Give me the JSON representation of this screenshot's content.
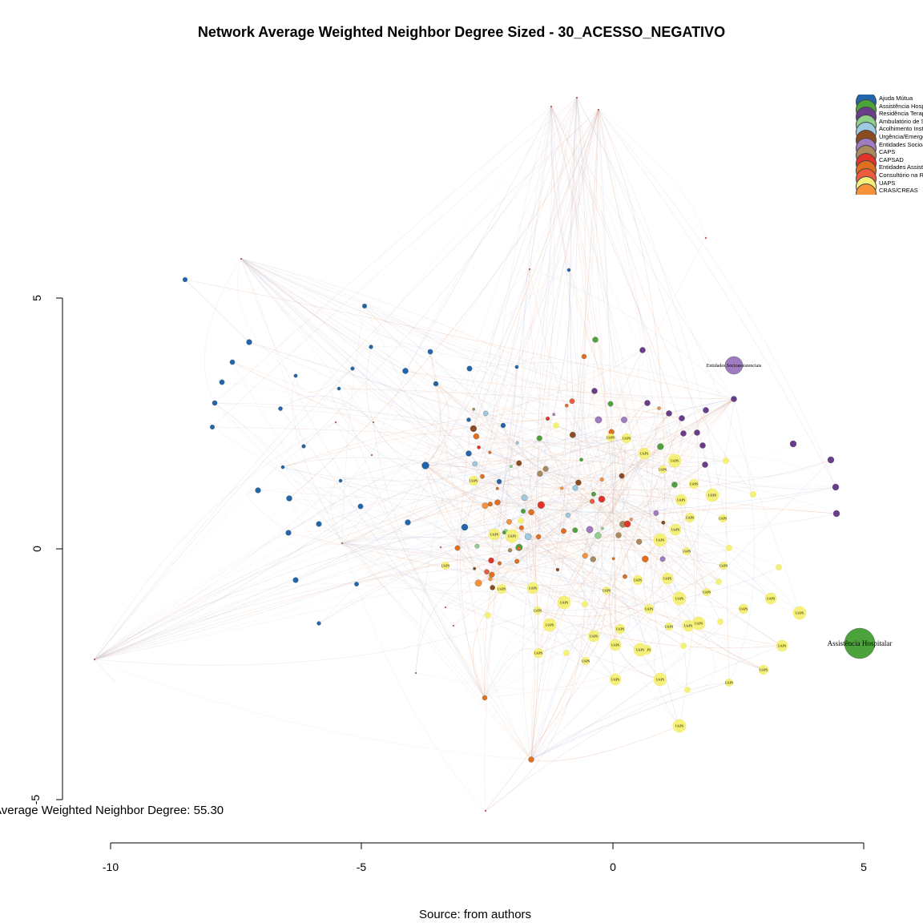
{
  "title": "Network Average Weighted Neighbor Degree Sized - 30_ACESSO_NEGATIVO",
  "stat_text": "Average Weighted Neighbor Degree: 55.30",
  "source_text": "Source: from authors",
  "axes": {
    "x_ticks": [
      "-10",
      "-5",
      "0",
      "5"
    ],
    "y_ticks": [
      "5",
      "0",
      "-5"
    ]
  },
  "legend": [
    {
      "label": "Ajuda Mútua",
      "color": "#2166ac"
    },
    {
      "label": "Assistência Hospitalar",
      "color": "#4ca33b"
    },
    {
      "label": "Residência Terapêutica",
      "color": "#6a3d8a"
    },
    {
      "label": "Ambulatório de Saúde Mental",
      "color": "#8fd18a"
    },
    {
      "label": "Acolhimento Institucional",
      "color": "#9ecae1"
    },
    {
      "label": "Urgência/Emergência",
      "color": "#8c4a1f"
    },
    {
      "label": "Entidades Socioassistenciais",
      "color": "#a17bbf"
    },
    {
      "label": "CAPS",
      "color": "#a88a5c"
    },
    {
      "label": "CAPSAD",
      "color": "#e0342a"
    },
    {
      "label": "Entidades Assistenciais",
      "color": "#e07020"
    },
    {
      "label": "Consultório na Rua",
      "color": "#ef5b3f"
    },
    {
      "label": "UAPS",
      "color": "#f5f07a"
    },
    {
      "label": "CRAS/CREAS",
      "color": "#f7923a"
    }
  ],
  "big_labels": {
    "hospital": "Assistência Hospitalar",
    "socio": "Entidades Socioassistenciais",
    "uaps": "UAPS"
  }
}
